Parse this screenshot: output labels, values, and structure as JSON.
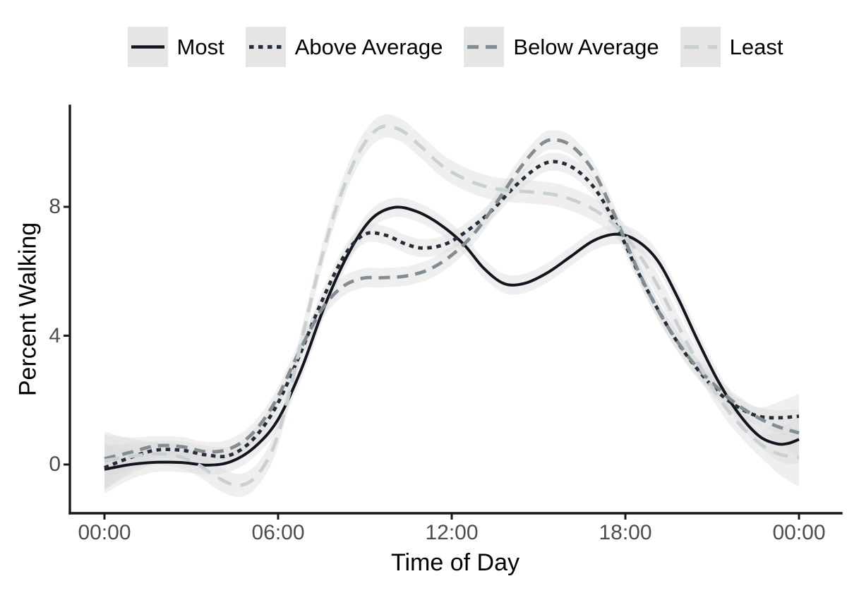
{
  "chart_data": {
    "type": "line",
    "title": "",
    "xlabel": "Time of Day",
    "ylabel": "Percent Walking",
    "legend_position": "top",
    "grid": false,
    "background": "#ffffff",
    "axis_color": "#1a1a1a",
    "tick_label_color": "#4d4d4d",
    "legend_key_fill": "#e5e5e5",
    "ribbon_color": "#d9d9d9",
    "ribbon_opacity": 0.42,
    "x_ticks": [
      {
        "label": "00:00",
        "hour": 0
      },
      {
        "label": "06:00",
        "hour": 6
      },
      {
        "label": "12:00",
        "hour": 12
      },
      {
        "label": "18:00",
        "hour": 18
      },
      {
        "label": "00:00",
        "hour": 24
      }
    ],
    "y_ticks": [
      {
        "label": "0",
        "value": 0
      },
      {
        "label": "4",
        "value": 4
      },
      {
        "label": "8",
        "value": 8
      }
    ],
    "xlim_hours": [
      0,
      24
    ],
    "ylim": [
      -1.5,
      11.1
    ],
    "series": [
      {
        "name": "Most",
        "linetype": "solid",
        "color": "#14141f",
        "ribbon_halfwidth": 0.3,
        "points": [
          [
            0,
            -0.15
          ],
          [
            0.9,
            0.0
          ],
          [
            1.8,
            0.07
          ],
          [
            2.7,
            0.06
          ],
          [
            3.6,
            -0.02
          ],
          [
            4.4,
            0.1
          ],
          [
            5.2,
            0.55
          ],
          [
            6,
            1.4
          ],
          [
            6.8,
            2.95
          ],
          [
            7.6,
            4.9
          ],
          [
            8.4,
            6.5
          ],
          [
            9.2,
            7.6
          ],
          [
            10,
            7.98
          ],
          [
            10.8,
            7.85
          ],
          [
            11.6,
            7.45
          ],
          [
            12.4,
            6.85
          ],
          [
            13.1,
            6.1
          ],
          [
            13.8,
            5.62
          ],
          [
            14.5,
            5.62
          ],
          [
            15.3,
            5.95
          ],
          [
            16.1,
            6.45
          ],
          [
            16.9,
            6.95
          ],
          [
            17.7,
            7.15
          ],
          [
            18.4,
            6.95
          ],
          [
            19.1,
            6.35
          ],
          [
            19.8,
            5.2
          ],
          [
            20.5,
            3.85
          ],
          [
            21.2,
            2.6
          ],
          [
            21.9,
            1.6
          ],
          [
            22.6,
            0.9
          ],
          [
            23.2,
            0.65
          ],
          [
            23.6,
            0.65
          ],
          [
            24,
            0.78
          ]
        ]
      },
      {
        "name": "Above Average",
        "linetype": "dotted",
        "color": "#222d37",
        "ribbon_halfwidth": 0.28,
        "points": [
          [
            0,
            -0.1
          ],
          [
            0.9,
            0.22
          ],
          [
            1.8,
            0.45
          ],
          [
            2.7,
            0.44
          ],
          [
            3.5,
            0.3
          ],
          [
            4.3,
            0.28
          ],
          [
            5.1,
            0.75
          ],
          [
            5.9,
            1.75
          ],
          [
            6.7,
            3.3
          ],
          [
            7.5,
            5.05
          ],
          [
            8.3,
            6.5
          ],
          [
            9,
            7.15
          ],
          [
            9.7,
            7.12
          ],
          [
            10.4,
            6.85
          ],
          [
            11,
            6.72
          ],
          [
            11.8,
            6.85
          ],
          [
            12.6,
            7.3
          ],
          [
            13.4,
            7.9
          ],
          [
            14.2,
            8.65
          ],
          [
            15,
            9.25
          ],
          [
            15.6,
            9.4
          ],
          [
            16.3,
            9.15
          ],
          [
            17,
            8.5
          ],
          [
            17.7,
            7.4
          ],
          [
            18.4,
            6.05
          ],
          [
            19.1,
            4.85
          ],
          [
            19.8,
            3.8
          ],
          [
            20.5,
            2.95
          ],
          [
            21.2,
            2.25
          ],
          [
            21.9,
            1.78
          ],
          [
            22.6,
            1.5
          ],
          [
            23.3,
            1.45
          ],
          [
            24,
            1.5
          ]
        ]
      },
      {
        "name": "Below Average",
        "linetype": "dashed",
        "color": "#828d93",
        "ribbon_halfwidth": 0.3,
        "points": [
          [
            0,
            0.18
          ],
          [
            0.9,
            0.38
          ],
          [
            1.8,
            0.58
          ],
          [
            2.7,
            0.55
          ],
          [
            3.5,
            0.4
          ],
          [
            4.3,
            0.48
          ],
          [
            5.1,
            0.95
          ],
          [
            5.9,
            1.95
          ],
          [
            6.7,
            3.45
          ],
          [
            7.5,
            4.8
          ],
          [
            8.2,
            5.5
          ],
          [
            8.9,
            5.78
          ],
          [
            9.6,
            5.8
          ],
          [
            10.4,
            5.85
          ],
          [
            11.2,
            6.05
          ],
          [
            12,
            6.5
          ],
          [
            12.8,
            7.2
          ],
          [
            13.6,
            8.2
          ],
          [
            14.4,
            9.25
          ],
          [
            15.1,
            9.95
          ],
          [
            15.6,
            10.08
          ],
          [
            16.2,
            9.85
          ],
          [
            16.9,
            9.1
          ],
          [
            17.6,
            7.8
          ],
          [
            18.3,
            6.3
          ],
          [
            19,
            5.0
          ],
          [
            19.7,
            3.95
          ],
          [
            20.4,
            3.1
          ],
          [
            21.1,
            2.45
          ],
          [
            21.8,
            1.9
          ],
          [
            22.5,
            1.5
          ],
          [
            23.2,
            1.2
          ],
          [
            24,
            0.98
          ]
        ]
      },
      {
        "name": "Least",
        "linetype": "longdash",
        "color": "#c9d0d4",
        "ribbon_halfwidth": 0.36,
        "points": [
          [
            0,
            0.12
          ],
          [
            0.9,
            0.25
          ],
          [
            1.7,
            0.33
          ],
          [
            2.5,
            0.27
          ],
          [
            3.2,
            0.02
          ],
          [
            3.9,
            -0.4
          ],
          [
            4.6,
            -0.65
          ],
          [
            5.2,
            -0.4
          ],
          [
            5.8,
            0.45
          ],
          [
            6.3,
            1.9
          ],
          [
            6.9,
            4.2
          ],
          [
            7.5,
            6.4
          ],
          [
            8.1,
            8.2
          ],
          [
            8.8,
            9.7
          ],
          [
            9.5,
            10.45
          ],
          [
            10.2,
            10.4
          ],
          [
            10.9,
            9.9
          ],
          [
            11.7,
            9.25
          ],
          [
            12.5,
            8.85
          ],
          [
            13.3,
            8.6
          ],
          [
            14.1,
            8.5
          ],
          [
            14.9,
            8.45
          ],
          [
            15.7,
            8.35
          ],
          [
            16.5,
            8.1
          ],
          [
            17.2,
            7.75
          ],
          [
            17.9,
            7.2
          ],
          [
            18.6,
            6.35
          ],
          [
            19.3,
            5.25
          ],
          [
            20,
            4.0
          ],
          [
            20.7,
            2.85
          ],
          [
            21.4,
            1.85
          ],
          [
            22.1,
            1.1
          ],
          [
            22.8,
            0.55
          ],
          [
            23.4,
            0.3
          ],
          [
            24,
            0.22
          ]
        ]
      }
    ]
  }
}
